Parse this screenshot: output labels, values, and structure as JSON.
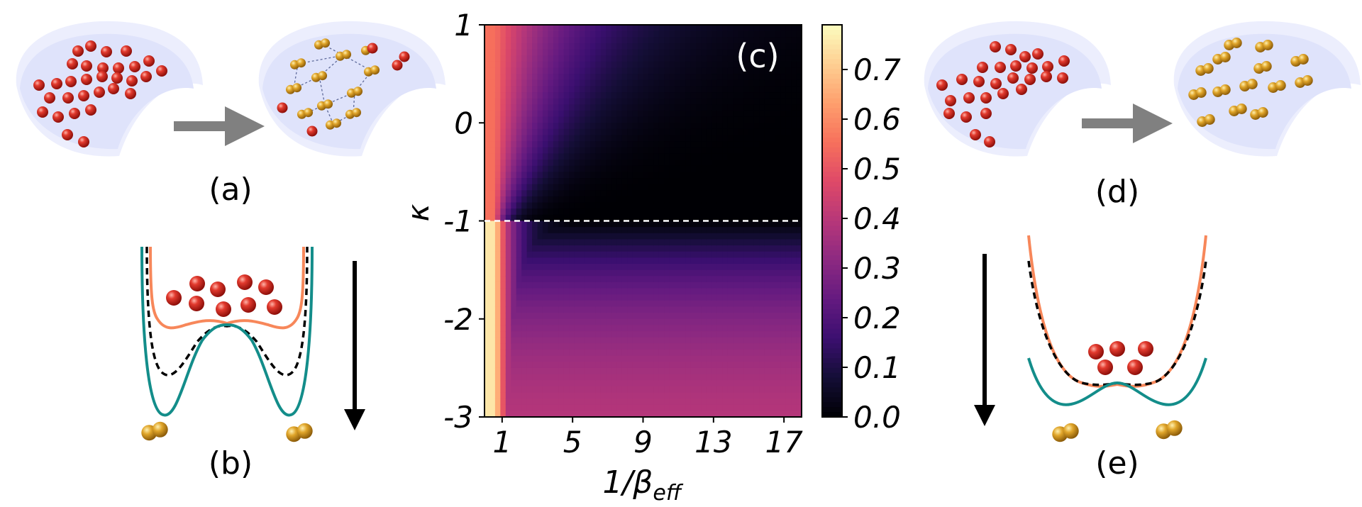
{
  "panels": {
    "a": "(a)",
    "b": "(b)",
    "c": "(c)",
    "d": "(d)",
    "e": "(e)"
  },
  "colors": {
    "red_particle": "#cc1f1a",
    "gold_particle": "#d89a1c",
    "orange_curve": "#f7875a",
    "teal_curve": "#138d8a",
    "dashed_curve": "#000000",
    "arrow_gray": "#808080",
    "dish": "#dfe3fb"
  },
  "chart_data": {
    "type": "heatmap",
    "title": "",
    "panel_label": "(c)",
    "xlabel_main": "1/β",
    "xlabel_sub": "eff",
    "ylabel": "κ",
    "xlim": [
      0,
      18
    ],
    "ylim": [
      -3,
      1
    ],
    "x_ticks": [
      1,
      5,
      9,
      13,
      17
    ],
    "x_tick_labels": [
      "1",
      "5",
      "9",
      "13",
      "17"
    ],
    "y_ticks": [
      1,
      0,
      -1,
      -2,
      -3
    ],
    "y_tick_labels": [
      "1",
      "0",
      "-1",
      "-2",
      "-3"
    ],
    "colormap": "magma",
    "colorbar_range": [
      0,
      0.79
    ],
    "colorbar_ticks": [
      0.0,
      0.1,
      0.2,
      0.3,
      0.4,
      0.5,
      0.6,
      0.7
    ],
    "colorbar_tick_labels": [
      "0.0",
      "0.1",
      "0.2",
      "0.3",
      "0.4",
      "0.5",
      "0.6",
      "0.7"
    ],
    "reference_line": {
      "axis": "y",
      "value": -1,
      "style": "dashed",
      "color": "#ffffff"
    }
  }
}
